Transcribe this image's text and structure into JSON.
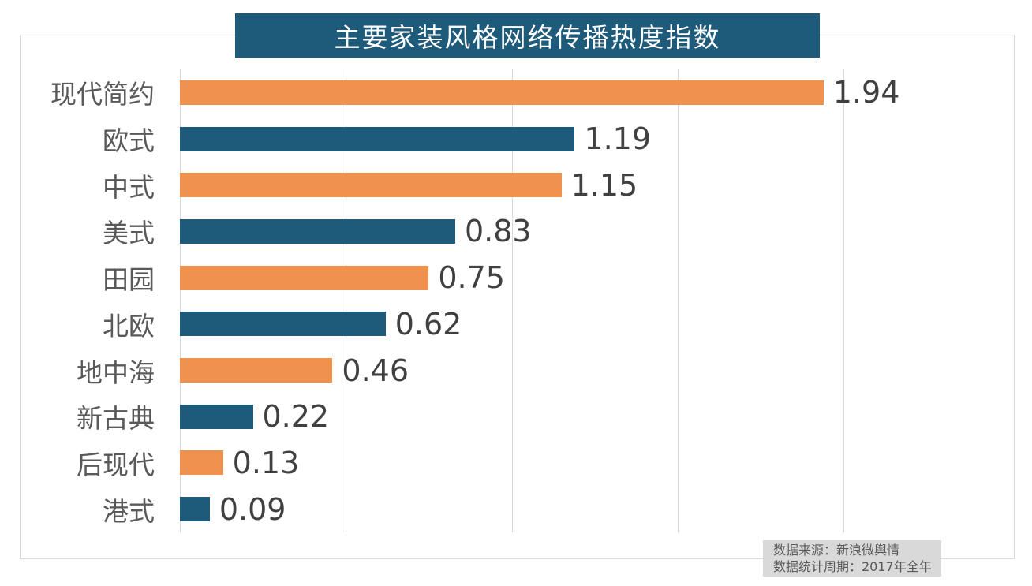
{
  "chart_data": {
    "type": "bar",
    "orientation": "horizontal",
    "title": "主要家装风格网络传播热度指数",
    "categories": [
      "现代简约",
      "欧式",
      "中式",
      "美式",
      "田园",
      "北欧",
      "地中海",
      "新古典",
      "后现代",
      "港式"
    ],
    "values": [
      1.94,
      1.19,
      1.15,
      0.83,
      0.75,
      0.62,
      0.46,
      0.22,
      0.13,
      0.09
    ],
    "value_labels": [
      "1.94",
      "1.19",
      "1.15",
      "0.83",
      "0.75",
      "0.62",
      "0.46",
      "0.22",
      "0.13",
      "0.09"
    ],
    "xlim": [
      0,
      2.0
    ],
    "gridline_interval": 0.5,
    "grid": "vertical-only",
    "legend": "none",
    "bar_colors_alternate": [
      "#F0924D",
      "#1E5A7A"
    ]
  },
  "footer": {
    "source_line": "数据来源：新浪微舆情",
    "period_line": "数据统计周期：2017年全年"
  },
  "colors": {
    "orange_bar": "#F0924D",
    "blue_bar": "#1E5A7A",
    "title_bg": "#1E5A7A",
    "title_text": "#FFFFFF",
    "gridline": "#D9D9D9",
    "frame_border": "#D9D9D9",
    "category_text": "#595959",
    "value_text": "#404040",
    "footer_bg": "#D9D9D9",
    "footer_text": "#595959"
  }
}
